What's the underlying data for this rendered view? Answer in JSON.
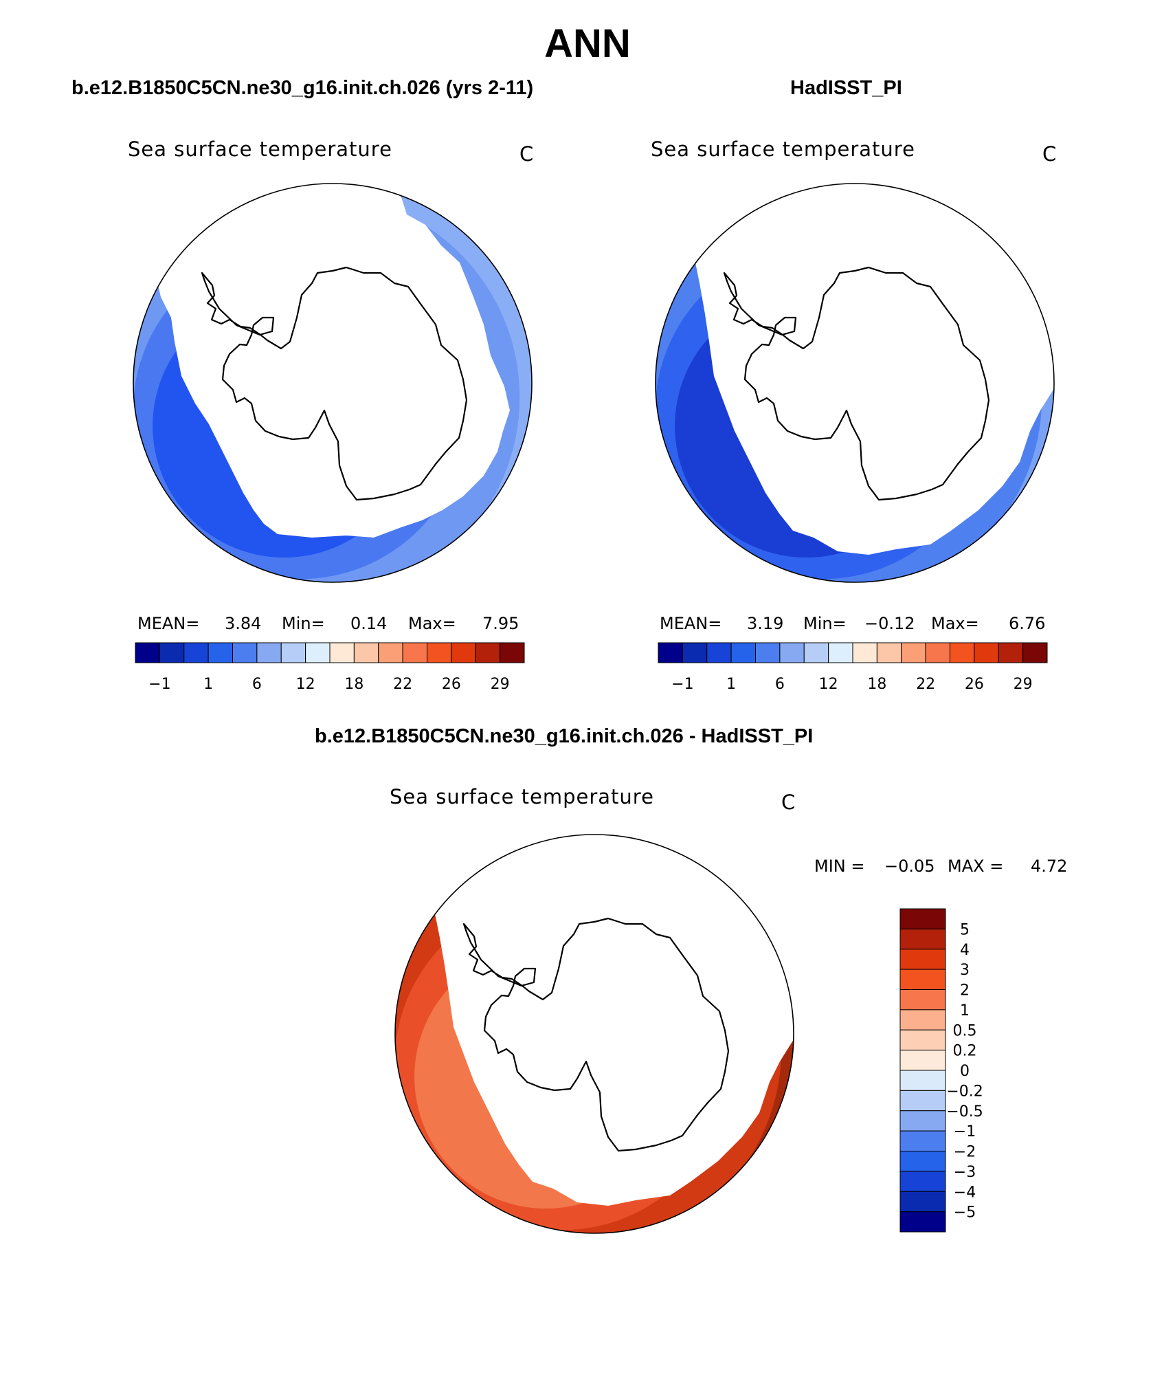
{
  "title": "ANN",
  "panels": [
    {
      "title": "b.e12.B1850C5CN.ne30_g16.init.ch.026 (yrs 2-11)",
      "variable": "Sea surface temperature",
      "units": "C",
      "stats": {
        "mean_label": "MEAN=",
        "mean": "3.84",
        "min_label": "Min=",
        "min": "0.14",
        "max_label": "Max=",
        "max": "7.95"
      }
    },
    {
      "title": "HadISST_PI",
      "variable": "Sea surface temperature",
      "units": "C",
      "stats": {
        "mean_label": "MEAN=",
        "mean": "3.19",
        "min_label": "Min=",
        "min": "−0.12",
        "max_label": "Max=",
        "max": "6.76"
      }
    },
    {
      "title": "b.e12.B1850C5CN.ne30_g16.init.ch.026 - HadISST_PI",
      "variable": "Sea surface temperature",
      "units": "C",
      "stats": {
        "min_label": "MIN =",
        "min": "−0.05",
        "max_label": "MAX =",
        "max": "4.72"
      }
    }
  ],
  "chart_data": [
    {
      "type": "heatmap",
      "projection": "south polar stereographic",
      "title": "b.e12.B1850C5CN.ne30_g16.init.ch.026 (yrs 2-11)",
      "variable": "Sea surface temperature",
      "units": "C",
      "mean": 3.84,
      "min": 0.14,
      "max": 7.95,
      "colorbar": {
        "orientation": "horizontal",
        "tick_labels": [
          "−1",
          "1",
          "6",
          "12",
          "18",
          "22",
          "26",
          "29"
        ],
        "colors": [
          "#00008b",
          "#0a2bb0",
          "#1744d6",
          "#2563eb",
          "#4c7ef0",
          "#86a9f2",
          "#b5cdf7",
          "#ddeefc",
          "#fee8d6",
          "#fcc7a8",
          "#fb9f76",
          "#f7764b",
          "#f3531f",
          "#e0390e",
          "#b3210a",
          "#7a0606"
        ]
      },
      "ocean_bands": [
        {
          "color": "#2254ef"
        },
        {
          "color": "#4978f0"
        },
        {
          "color": "#6f98f3"
        },
        {
          "color": "#8aaef5"
        }
      ]
    },
    {
      "type": "heatmap",
      "projection": "south polar stereographic",
      "title": "HadISST_PI",
      "variable": "Sea surface temperature",
      "units": "C",
      "mean": 3.19,
      "min": -0.12,
      "max": 6.76,
      "colorbar": {
        "orientation": "horizontal",
        "tick_labels": [
          "−1",
          "1",
          "6",
          "12",
          "18",
          "22",
          "26",
          "29"
        ],
        "colors": [
          "#00008b",
          "#0a2bb0",
          "#1744d6",
          "#2563eb",
          "#4c7ef0",
          "#86a9f2",
          "#b5cdf7",
          "#ddeefc",
          "#fee8d6",
          "#fcc7a8",
          "#fb9f76",
          "#f7764b",
          "#f3531f",
          "#e0390e",
          "#b3210a",
          "#7a0606"
        ]
      },
      "ocean_bands": [
        {
          "color": "#1a3ed4"
        },
        {
          "color": "#2f62ee"
        },
        {
          "color": "#4f80f0"
        },
        {
          "color": "#7aa2f4"
        }
      ]
    },
    {
      "type": "heatmap",
      "projection": "south polar stereographic",
      "title": "b.e12.B1850C5CN.ne30_g16.init.ch.026 - HadISST_PI",
      "variable": "Sea surface temperature",
      "units": "C",
      "min": -0.05,
      "max": 4.72,
      "colorbar": {
        "orientation": "vertical",
        "tick_labels": [
          "5",
          "4",
          "3",
          "2",
          "1",
          "0.5",
          "0.2",
          "0",
          "−0.2",
          "−0.5",
          "−1",
          "−2",
          "−3",
          "−4",
          "−5"
        ],
        "colors": [
          "#7a0606",
          "#b3210a",
          "#e0390e",
          "#f3531f",
          "#f7764b",
          "#fcb08e",
          "#fdd0b5",
          "#fdeadb",
          "#dbeafb",
          "#b5cdf7",
          "#86a9f2",
          "#4c7ef0",
          "#2563eb",
          "#1744d6",
          "#0a2bb0",
          "#00008b"
        ]
      },
      "ocean_bands": [
        {
          "color": "#f2784b"
        },
        {
          "color": "#e9502a"
        },
        {
          "color": "#d23a14"
        },
        {
          "color": "#a52a0c"
        }
      ]
    }
  ]
}
